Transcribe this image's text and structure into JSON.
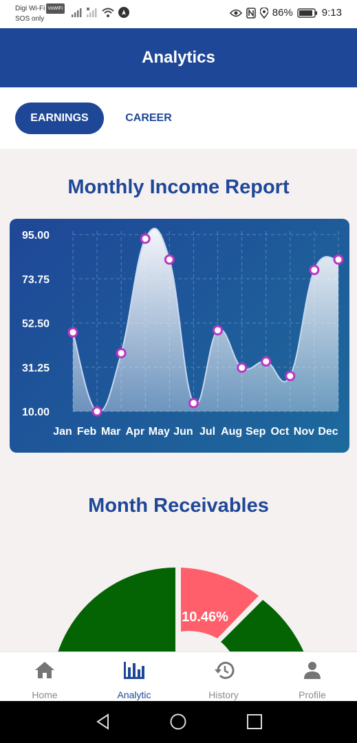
{
  "status_bar": {
    "carrier": "Digi Wi-Fi",
    "carrier_badge": "VoWiFi",
    "sos": "SOS only",
    "battery": "86%",
    "time": "9:13"
  },
  "app_bar": {
    "title": "Analytics"
  },
  "tabs": [
    {
      "label": "EARNINGS",
      "active": true
    },
    {
      "label": "CAREER",
      "active": false
    }
  ],
  "income_section": {
    "title": "Monthly Income Report"
  },
  "chart_data": {
    "type": "area",
    "title": "Monthly Income Report",
    "categories": [
      "Jan",
      "Feb",
      "Mar",
      "Apr",
      "May",
      "Jun",
      "Jul",
      "Aug",
      "Sep",
      "Oct",
      "Nov",
      "Dec"
    ],
    "series": [
      {
        "values": [
          48,
          10,
          38,
          93,
          83,
          14,
          49,
          31,
          34,
          27,
          78,
          83
        ]
      }
    ],
    "y_ticks": [
      "95.00",
      "73.75",
      "52.50",
      "31.25",
      "10.00"
    ],
    "ylim": [
      10,
      95
    ],
    "grid": true,
    "colors": {
      "line": "#c9d8ef",
      "marker_fill": "#ffffff",
      "marker_stroke": "#bb36c4",
      "tick_text": "#ffffff"
    }
  },
  "receivables_section": {
    "title": "Month Receivables"
  },
  "receivables_chart": {
    "type": "pie",
    "visible_label": "10.46%",
    "highlight_value": 10.46,
    "colors": {
      "primary": "#046404",
      "highlight": "#ff5f6b"
    }
  },
  "bottom_nav": [
    {
      "label": "Home",
      "icon": "home-icon",
      "active": false
    },
    {
      "label": "Analytic",
      "icon": "bar-chart-icon",
      "active": true
    },
    {
      "label": "History",
      "icon": "history-icon",
      "active": false
    },
    {
      "label": "Profile",
      "icon": "person-icon",
      "active": false
    }
  ],
  "system_nav": {
    "icons": [
      "back-icon",
      "home-circle-icon",
      "recents-icon"
    ]
  },
  "colors": {
    "brand": "#1f4797",
    "background": "#f6f1f1"
  }
}
